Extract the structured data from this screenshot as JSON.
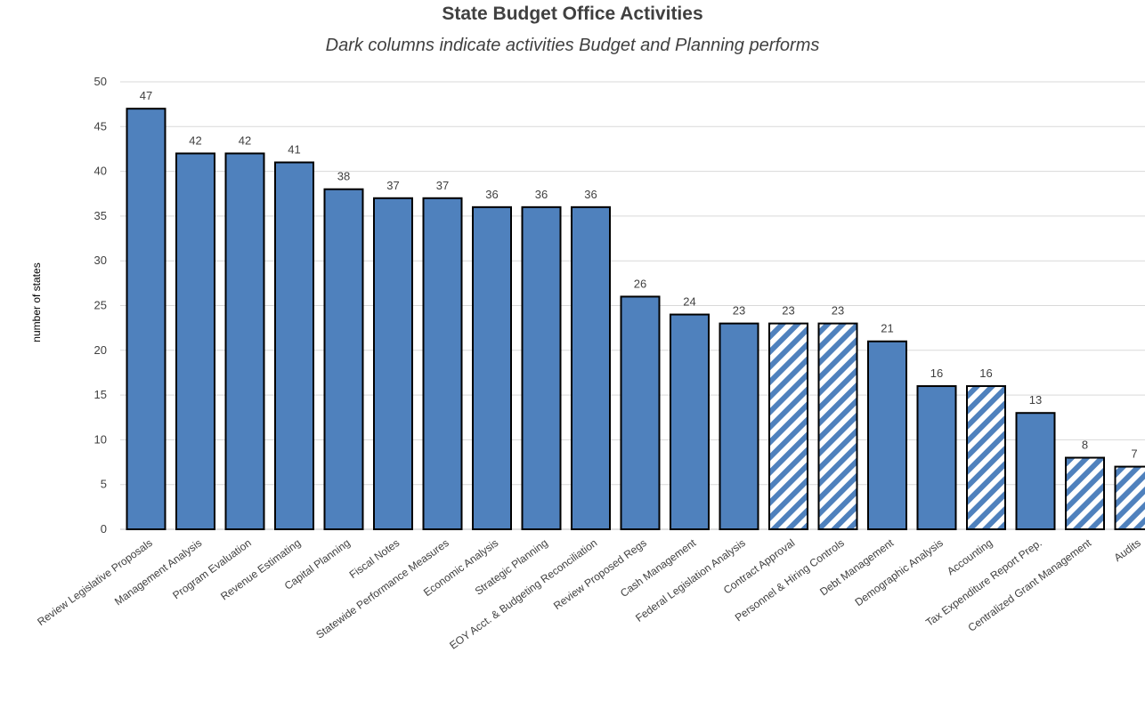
{
  "chart_data": {
    "type": "bar",
    "title": "State Budget Office Activities",
    "subtitle": "Dark columns indicate activities Budget and Planning performs",
    "xlabel": "",
    "ylabel": "number of states",
    "ylim": [
      0,
      50
    ],
    "yticks": [
      0,
      5,
      10,
      15,
      20,
      25,
      30,
      35,
      40,
      45,
      50
    ],
    "grid": true,
    "categories": [
      "Review Legislative Proposals",
      "Management Analysis",
      "Program Evaluation",
      "Revenue Estimating",
      "Capital Planning",
      "Fiscal Notes",
      "Statewide Performance Measures",
      "Economic Analysis",
      "Strategic Planning",
      "EOY Acct. & Budgeting Reconciliation",
      "Review Proposed Regs",
      "Cash Management",
      "Federal Legislation Analysis",
      "Contract Approval",
      "Personnel & Hiring Controls",
      "Debt Management",
      "Demographic Analysis",
      "Accounting",
      "Tax Expenditure Report Prep.",
      "Centralized Grant Management",
      "Audits"
    ],
    "values": [
      47,
      42,
      42,
      41,
      38,
      37,
      37,
      36,
      36,
      36,
      26,
      24,
      23,
      23,
      23,
      21,
      16,
      16,
      13,
      8,
      7
    ],
    "performed_by_budget_and_planning": [
      true,
      true,
      true,
      true,
      true,
      true,
      true,
      true,
      true,
      true,
      true,
      true,
      true,
      false,
      false,
      true,
      true,
      false,
      true,
      false,
      false
    ],
    "colors": {
      "bar": "#4f81bd",
      "hatch_bg": "#ffffff",
      "outline": "#000000",
      "grid": "#d9d9d9",
      "text": "#404040"
    }
  }
}
